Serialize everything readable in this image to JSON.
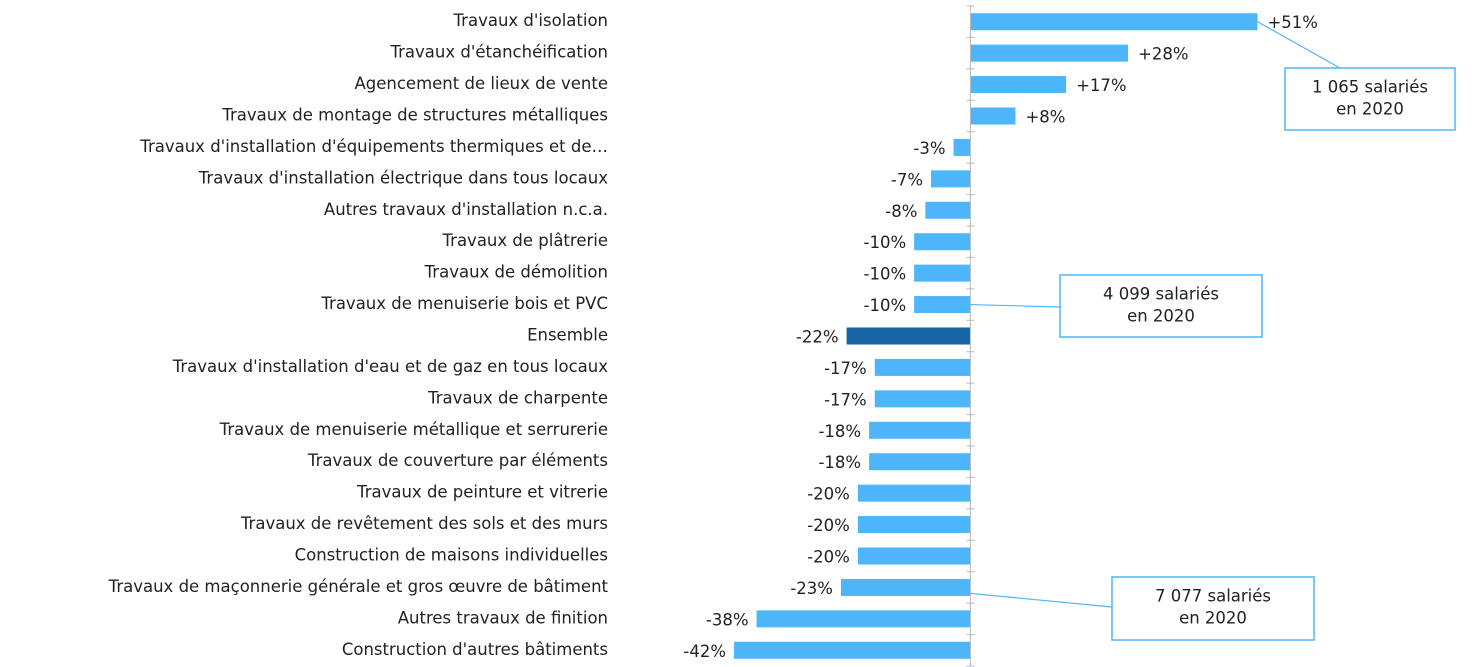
{
  "chart_data": {
    "type": "bar",
    "orientation": "horizontal",
    "categories": [
      "Travaux d'isolation",
      "Travaux d'étanchéification",
      "Agencement de lieux de vente",
      "Travaux de montage de structures métalliques",
      "Travaux d'installation d'équipements thermiques et de…",
      "Travaux d'installation électrique dans tous locaux",
      "Autres travaux d'installation n.c.a.",
      "Travaux de plâtrerie",
      "Travaux de démolition",
      "Travaux de menuiserie bois et PVC",
      "Ensemble",
      "Travaux d'installation d'eau et de gaz en tous locaux",
      "Travaux de charpente",
      "Travaux de menuiserie métallique et serrurerie",
      "Travaux de couverture par éléments",
      "Travaux de peinture et vitrerie",
      "Travaux de revêtement des sols et des murs",
      "Construction de maisons individuelles",
      "Travaux de maçonnerie générale et gros œuvre de bâtiment",
      "Autres travaux de finition",
      "Construction d'autres bâtiments"
    ],
    "values": [
      51,
      28,
      17,
      8,
      -3,
      -7,
      -8,
      -10,
      -10,
      -10,
      -22,
      -17,
      -17,
      -18,
      -18,
      -20,
      -20,
      -20,
      -23,
      -38,
      -42
    ],
    "value_labels": [
      "+51%",
      "+28%",
      "+17%",
      "+8%",
      "-3%",
      "-7%",
      "-8%",
      "-10%",
      "-10%",
      "-10%",
      "-22%",
      "-17%",
      "-17%",
      "-18%",
      "-18%",
      "-20%",
      "-20%",
      "-20%",
      "-23%",
      "-38%",
      "-42%"
    ],
    "colors": [
      "#4db5fa",
      "#4db5fa",
      "#4db5fa",
      "#4db5fa",
      "#4db5fa",
      "#4db5fa",
      "#4db5fa",
      "#4db5fa",
      "#4db5fa",
      "#4db5fa",
      "#1565a6",
      "#4db5fa",
      "#4db5fa",
      "#4db5fa",
      "#4db5fa",
      "#4db5fa",
      "#4db5fa",
      "#4db5fa",
      "#4db5fa",
      "#4db5fa",
      "#4db5fa"
    ],
    "xlim": [
      -50,
      55
    ],
    "annotations": [
      {
        "lines": [
          "1 065 salariés",
          "en 2020"
        ]
      },
      {
        "lines": [
          "4 099 salariés",
          "en 2020"
        ]
      },
      {
        "lines": [
          "7 077 salariés",
          "en 2020"
        ]
      }
    ]
  }
}
